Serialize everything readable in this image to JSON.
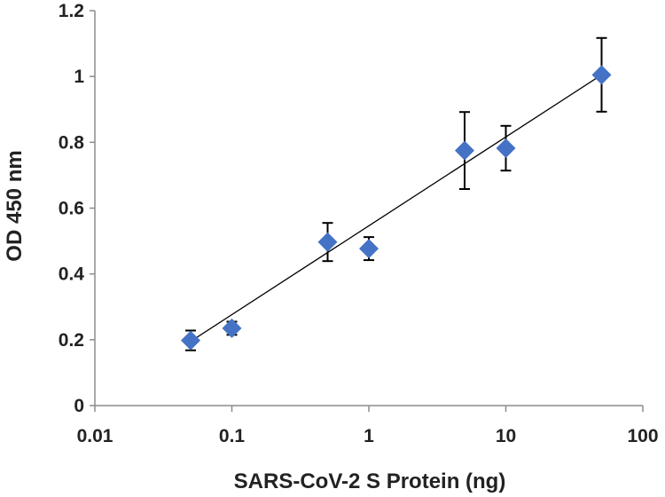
{
  "chart_data": {
    "type": "scatter",
    "title": "",
    "xlabel": "SARS-CoV-2 S Protein (ng)",
    "ylabel": "OD 450 nm",
    "x_scale": "log",
    "xlim": [
      0.01,
      100
    ],
    "ylim": [
      0,
      1.2
    ],
    "x_ticks": [
      0.01,
      0.1,
      1,
      10,
      100
    ],
    "x_tick_labels": [
      "0.01",
      "0.1",
      "1",
      "10",
      "100"
    ],
    "y_ticks": [
      0,
      0.2,
      0.4,
      0.6,
      0.8,
      1.0,
      1.2
    ],
    "y_tick_labels": [
      "0",
      "0.2",
      "0.4",
      "0.6",
      "0.8",
      "1",
      "1.2"
    ],
    "grid": false,
    "series": [
      {
        "name": "OD 450 nm",
        "marker": "diamond",
        "color": "#4472C4",
        "x": [
          0.05,
          0.1,
          0.5,
          1,
          5,
          10,
          50
        ],
        "y": [
          0.198,
          0.235,
          0.497,
          0.477,
          0.775,
          0.782,
          1.005
        ],
        "error": [
          0.03,
          0.02,
          0.058,
          0.035,
          0.117,
          0.068,
          0.112
        ]
      }
    ],
    "trendline": {
      "type": "log",
      "x": [
        0.05,
        50
      ],
      "y": [
        0.195,
        1.005
      ],
      "color": "#000000"
    }
  }
}
